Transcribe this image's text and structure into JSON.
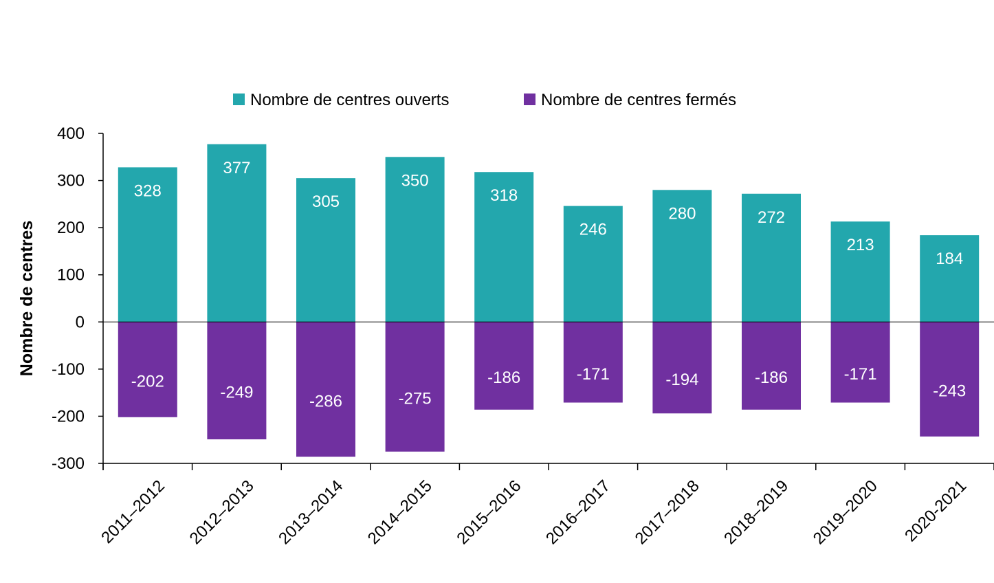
{
  "chart_data": {
    "type": "bar",
    "stacked": true,
    "title": "",
    "xlabel": "",
    "ylabel": "Nombre de centres",
    "ylim": [
      -300,
      400
    ],
    "yticks": [
      400,
      300,
      200,
      100,
      0,
      -100,
      -200,
      -300
    ],
    "ytick_labels": [
      "400",
      "300",
      "200",
      "100",
      "0",
      "-100",
      "-200",
      "-300"
    ],
    "grid": false,
    "legend_position": "top",
    "categories": [
      "2011–2012",
      "2012–2013",
      "2013–2014",
      "2014–2015",
      "2015–2016",
      "2016–2017",
      "2017–2018",
      "2018–2019",
      "2019–2020",
      "2020-2021"
    ],
    "series": [
      {
        "name": "Nombre de centres ouverts",
        "color": "#23a7ad",
        "values": [
          328,
          377,
          305,
          350,
          318,
          246,
          280,
          272,
          213,
          184
        ],
        "labels": [
          "328",
          "377",
          "305",
          "350",
          "318",
          "246",
          "280",
          "272",
          "213",
          "184"
        ]
      },
      {
        "name": "Nombre de centres fermés",
        "color": "#7030a0",
        "values": [
          -202,
          -249,
          -286,
          -275,
          -186,
          -171,
          -194,
          -186,
          -171,
          -243
        ],
        "labels": [
          "-202",
          "-249",
          "-286",
          "-275",
          "-186",
          "-171",
          "-194",
          "-186",
          "-171",
          "-243"
        ]
      }
    ]
  }
}
